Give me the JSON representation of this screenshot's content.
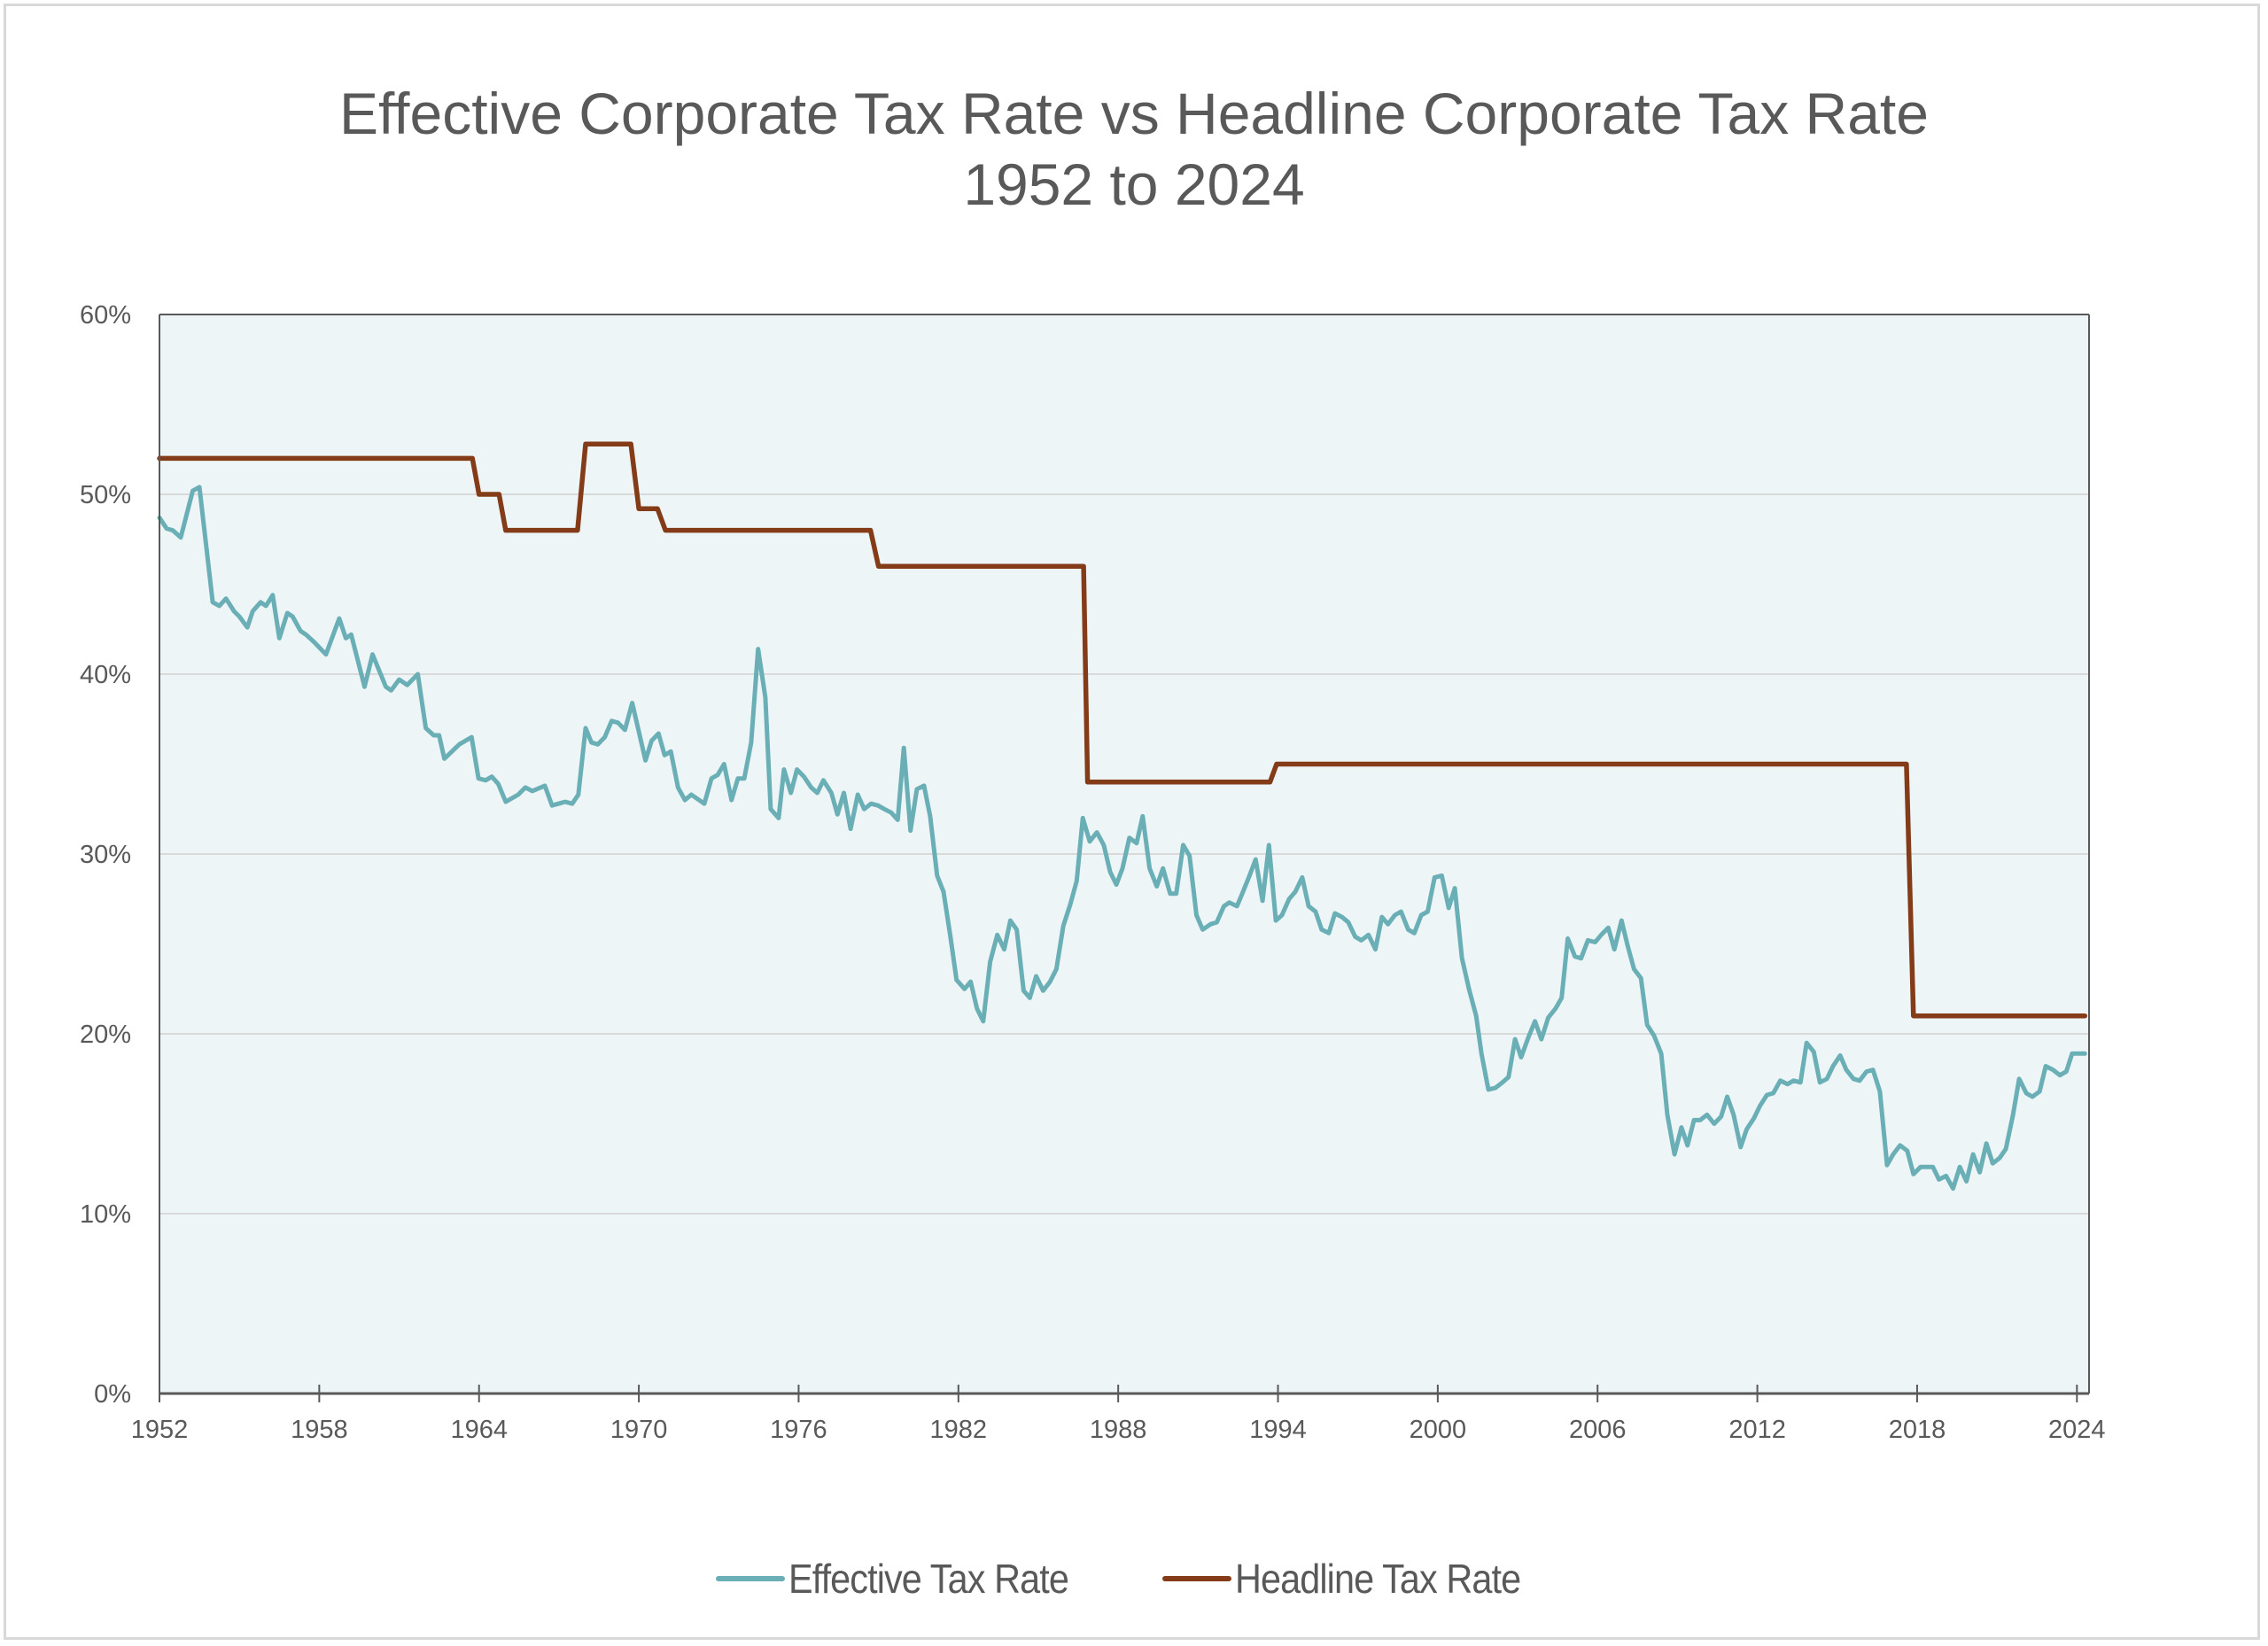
{
  "chart_data": {
    "type": "line",
    "title": "Effective Corporate Tax Rate vs Headline Corporate Tax Rate",
    "subtitle": "1952 to 2024",
    "xlabel": "",
    "ylabel": "",
    "xlim": [
      1952,
      2024.3
    ],
    "ylim": [
      0,
      60
    ],
    "x_ticks": [
      1952,
      1958,
      1964,
      1970,
      1976,
      1982,
      1988,
      1994,
      2000,
      2006,
      2012,
      2018,
      2024
    ],
    "y_ticks": [
      0,
      10,
      20,
      30,
      40,
      50,
      60
    ],
    "y_tick_labels": [
      "0%",
      "10%",
      "20%",
      "30%",
      "40%",
      "50%",
      "60%"
    ],
    "grid": "horizontal",
    "legend_position": "bottom",
    "plot_background": "#edf5f7",
    "series": [
      {
        "name": "Effective Tax Rate",
        "color": "#6aafb5",
        "points": [
          [
            1952.0,
            48.7
          ],
          [
            1952.27,
            48.1
          ],
          [
            1952.5,
            48.0
          ],
          [
            1952.8,
            47.6
          ],
          [
            1953.25,
            50.2
          ],
          [
            1953.5,
            50.4
          ],
          [
            1954.0,
            44.0
          ],
          [
            1954.25,
            43.8
          ],
          [
            1954.5,
            44.2
          ],
          [
            1954.8,
            43.5
          ],
          [
            1955.0,
            43.2
          ],
          [
            1955.3,
            42.6
          ],
          [
            1955.5,
            43.5
          ],
          [
            1955.8,
            44.0
          ],
          [
            1956.0,
            43.8
          ],
          [
            1956.25,
            44.4
          ],
          [
            1956.5,
            42.0
          ],
          [
            1956.8,
            43.4
          ],
          [
            1957.0,
            43.2
          ],
          [
            1957.3,
            42.4
          ],
          [
            1957.5,
            42.2
          ],
          [
            1957.8,
            41.8
          ],
          [
            1958.25,
            41.1
          ],
          [
            1958.75,
            43.1
          ],
          [
            1959.0,
            42.0
          ],
          [
            1959.2,
            42.2
          ],
          [
            1959.7,
            39.3
          ],
          [
            1960.0,
            41.1
          ],
          [
            1960.5,
            39.3
          ],
          [
            1960.7,
            39.1
          ],
          [
            1961.0,
            39.7
          ],
          [
            1961.3,
            39.4
          ],
          [
            1961.7,
            40.0
          ],
          [
            1962.0,
            37.0
          ],
          [
            1962.3,
            36.6
          ],
          [
            1962.5,
            36.6
          ],
          [
            1962.7,
            35.3
          ],
          [
            1963.26,
            36.1
          ],
          [
            1963.72,
            36.5
          ],
          [
            1963.98,
            34.2
          ],
          [
            1964.25,
            34.1
          ],
          [
            1964.48,
            34.3
          ],
          [
            1964.72,
            33.9
          ],
          [
            1965.0,
            32.9
          ],
          [
            1965.47,
            33.3
          ],
          [
            1965.74,
            33.7
          ],
          [
            1966.0,
            33.5
          ],
          [
            1966.47,
            33.8
          ],
          [
            1966.74,
            32.7
          ],
          [
            1967.23,
            32.9
          ],
          [
            1967.5,
            32.8
          ],
          [
            1967.73,
            33.3
          ],
          [
            1968.0,
            37.0
          ],
          [
            1968.22,
            36.2
          ],
          [
            1968.46,
            36.1
          ],
          [
            1968.72,
            36.5
          ],
          [
            1968.98,
            37.4
          ],
          [
            1969.22,
            37.3
          ],
          [
            1969.48,
            36.9
          ],
          [
            1969.75,
            38.4
          ],
          [
            1970.25,
            35.2
          ],
          [
            1970.48,
            36.3
          ],
          [
            1970.74,
            36.7
          ],
          [
            1970.97,
            35.5
          ],
          [
            1971.2,
            35.7
          ],
          [
            1971.47,
            33.7
          ],
          [
            1971.73,
            33.0
          ],
          [
            1971.97,
            33.3
          ],
          [
            1972.46,
            32.8
          ],
          [
            1972.73,
            34.2
          ],
          [
            1972.96,
            34.4
          ],
          [
            1973.2,
            35.0
          ],
          [
            1973.48,
            33.0
          ],
          [
            1973.72,
            34.2
          ],
          [
            1973.96,
            34.2
          ],
          [
            1974.22,
            36.2
          ],
          [
            1974.48,
            41.4
          ],
          [
            1974.75,
            38.7
          ],
          [
            1974.95,
            32.5
          ],
          [
            1975.25,
            32.0
          ],
          [
            1975.45,
            34.7
          ],
          [
            1975.71,
            33.4
          ],
          [
            1975.94,
            34.7
          ],
          [
            1976.2,
            34.3
          ],
          [
            1976.47,
            33.7
          ],
          [
            1976.7,
            33.4
          ],
          [
            1976.93,
            34.1
          ],
          [
            1977.23,
            33.4
          ],
          [
            1977.46,
            32.2
          ],
          [
            1977.7,
            33.4
          ],
          [
            1977.95,
            31.4
          ],
          [
            1978.22,
            33.3
          ],
          [
            1978.46,
            32.5
          ],
          [
            1978.72,
            32.8
          ],
          [
            1978.98,
            32.7
          ],
          [
            1979.22,
            32.5
          ],
          [
            1979.48,
            32.3
          ],
          [
            1979.72,
            31.9
          ],
          [
            1979.95,
            35.9
          ],
          [
            1980.2,
            31.3
          ],
          [
            1980.44,
            33.6
          ],
          [
            1980.71,
            33.8
          ],
          [
            1980.94,
            32.1
          ],
          [
            1981.2,
            28.8
          ],
          [
            1981.44,
            27.9
          ],
          [
            1981.7,
            25.4
          ],
          [
            1981.93,
            23.0
          ],
          [
            1982.23,
            22.5
          ],
          [
            1982.46,
            22.9
          ],
          [
            1982.7,
            21.4
          ],
          [
            1982.93,
            20.7
          ],
          [
            1983.19,
            24.0
          ],
          [
            1983.46,
            25.5
          ],
          [
            1983.72,
            24.7
          ],
          [
            1983.95,
            26.3
          ],
          [
            1984.19,
            25.8
          ],
          [
            1984.45,
            22.4
          ],
          [
            1984.68,
            22.0
          ],
          [
            1984.92,
            23.2
          ],
          [
            1985.18,
            22.4
          ],
          [
            1985.44,
            22.9
          ],
          [
            1985.68,
            23.6
          ],
          [
            1985.94,
            26.0
          ],
          [
            1986.2,
            27.2
          ],
          [
            1986.44,
            28.5
          ],
          [
            1986.67,
            32.0
          ],
          [
            1986.93,
            30.7
          ],
          [
            1987.2,
            31.2
          ],
          [
            1987.46,
            30.5
          ],
          [
            1987.7,
            29.0
          ],
          [
            1987.93,
            28.3
          ],
          [
            1988.16,
            29.2
          ],
          [
            1988.42,
            30.9
          ],
          [
            1988.69,
            30.6
          ],
          [
            1988.92,
            32.1
          ],
          [
            1989.18,
            29.2
          ],
          [
            1989.45,
            28.2
          ],
          [
            1989.68,
            29.2
          ],
          [
            1989.95,
            27.8
          ],
          [
            1990.18,
            27.8
          ],
          [
            1990.44,
            30.5
          ],
          [
            1990.68,
            29.9
          ],
          [
            1990.94,
            26.6
          ],
          [
            1991.17,
            25.8
          ],
          [
            1991.47,
            26.1
          ],
          [
            1991.7,
            26.2
          ],
          [
            1991.97,
            27.1
          ],
          [
            1992.17,
            27.3
          ],
          [
            1992.46,
            27.1
          ],
          [
            1992.66,
            27.8
          ],
          [
            1992.93,
            28.8
          ],
          [
            1993.16,
            29.7
          ],
          [
            1993.42,
            27.4
          ],
          [
            1993.66,
            30.5
          ],
          [
            1993.92,
            26.3
          ],
          [
            1994.15,
            26.6
          ],
          [
            1994.42,
            27.5
          ],
          [
            1994.65,
            27.9
          ],
          [
            1994.91,
            28.7
          ],
          [
            1995.15,
            27.1
          ],
          [
            1995.41,
            26.8
          ],
          [
            1995.64,
            25.8
          ],
          [
            1995.91,
            25.6
          ],
          [
            1996.14,
            26.7
          ],
          [
            1996.4,
            26.5
          ],
          [
            1996.64,
            26.2
          ],
          [
            1996.9,
            25.4
          ],
          [
            1997.13,
            25.2
          ],
          [
            1997.4,
            25.5
          ],
          [
            1997.66,
            24.7
          ],
          [
            1997.9,
            26.5
          ],
          [
            1998.13,
            26.1
          ],
          [
            1998.39,
            26.6
          ],
          [
            1998.62,
            26.8
          ],
          [
            1998.89,
            25.8
          ],
          [
            1999.12,
            25.6
          ],
          [
            1999.38,
            26.6
          ],
          [
            1999.62,
            26.8
          ],
          [
            1999.88,
            28.7
          ],
          [
            2000.15,
            28.8
          ],
          [
            2000.41,
            27.0
          ],
          [
            2000.64,
            28.1
          ],
          [
            2000.91,
            24.2
          ],
          [
            2001.17,
            22.5
          ],
          [
            2001.44,
            21.0
          ],
          [
            2001.64,
            18.9
          ],
          [
            2001.9,
            16.9
          ],
          [
            2002.17,
            17.0
          ],
          [
            2002.43,
            17.3
          ],
          [
            2002.66,
            17.6
          ],
          [
            2002.9,
            19.7
          ],
          [
            2003.13,
            18.7
          ],
          [
            2003.4,
            19.8
          ],
          [
            2003.65,
            20.7
          ],
          [
            2003.89,
            19.7
          ],
          [
            2004.15,
            20.9
          ],
          [
            2004.42,
            21.4
          ],
          [
            2004.65,
            22.0
          ],
          [
            2004.88,
            25.3
          ],
          [
            2005.15,
            24.3
          ],
          [
            2005.38,
            24.2
          ],
          [
            2005.64,
            25.2
          ],
          [
            2005.91,
            25.1
          ],
          [
            2006.14,
            25.5
          ],
          [
            2006.4,
            25.9
          ],
          [
            2006.63,
            24.7
          ],
          [
            2006.9,
            26.3
          ],
          [
            2007.13,
            24.9
          ],
          [
            2007.37,
            23.6
          ],
          [
            2007.63,
            23.1
          ],
          [
            2007.86,
            20.5
          ],
          [
            2008.12,
            19.9
          ],
          [
            2008.39,
            18.9
          ],
          [
            2008.62,
            15.5
          ],
          [
            2008.89,
            13.3
          ],
          [
            2009.15,
            14.8
          ],
          [
            2009.38,
            13.8
          ],
          [
            2009.62,
            15.2
          ],
          [
            2009.85,
            15.2
          ],
          [
            2010.11,
            15.5
          ],
          [
            2010.38,
            15.0
          ],
          [
            2010.64,
            15.4
          ],
          [
            2010.87,
            16.5
          ],
          [
            2011.11,
            15.5
          ],
          [
            2011.37,
            13.7
          ],
          [
            2011.6,
            14.7
          ],
          [
            2011.87,
            15.3
          ],
          [
            2012.1,
            16.0
          ],
          [
            2012.36,
            16.6
          ],
          [
            2012.6,
            16.7
          ],
          [
            2012.86,
            17.4
          ],
          [
            2013.13,
            17.2
          ],
          [
            2013.36,
            17.4
          ],
          [
            2013.62,
            17.3
          ],
          [
            2013.85,
            19.5
          ],
          [
            2014.12,
            19.0
          ],
          [
            2014.35,
            17.3
          ],
          [
            2014.61,
            17.5
          ],
          [
            2014.84,
            18.2
          ],
          [
            2015.11,
            18.8
          ],
          [
            2015.34,
            18.0
          ],
          [
            2015.61,
            17.5
          ],
          [
            2015.84,
            17.4
          ],
          [
            2016.1,
            17.9
          ],
          [
            2016.34,
            18.0
          ],
          [
            2016.6,
            16.8
          ],
          [
            2016.87,
            12.7
          ],
          [
            2017.1,
            13.3
          ],
          [
            2017.36,
            13.8
          ],
          [
            2017.63,
            13.5
          ],
          [
            2017.86,
            12.2
          ],
          [
            2018.13,
            12.6
          ],
          [
            2018.36,
            12.6
          ],
          [
            2018.59,
            12.6
          ],
          [
            2018.82,
            11.9
          ],
          [
            2019.09,
            12.1
          ],
          [
            2019.35,
            11.4
          ],
          [
            2019.6,
            12.6
          ],
          [
            2019.85,
            11.8
          ],
          [
            2020.1,
            13.3
          ],
          [
            2020.35,
            12.3
          ],
          [
            2020.6,
            13.9
          ],
          [
            2020.84,
            12.8
          ],
          [
            2021.1,
            13.1
          ],
          [
            2021.33,
            13.6
          ],
          [
            2021.6,
            15.5
          ],
          [
            2021.83,
            17.5
          ],
          [
            2022.1,
            16.7
          ],
          [
            2022.33,
            16.5
          ],
          [
            2022.6,
            16.8
          ],
          [
            2022.83,
            18.2
          ],
          [
            2023.1,
            18.0
          ],
          [
            2023.36,
            17.7
          ],
          [
            2023.6,
            17.9
          ],
          [
            2023.82,
            18.9
          ],
          [
            2024.09,
            18.9
          ],
          [
            2024.3,
            18.9
          ]
        ]
      },
      {
        "name": "Headline Tax Rate",
        "color": "#843c18",
        "points": [
          [
            1952.0,
            52.0
          ],
          [
            1963.75,
            52.0
          ],
          [
            1964.0,
            50.0
          ],
          [
            1964.75,
            50.0
          ],
          [
            1965.0,
            48.0
          ],
          [
            1967.7,
            48.0
          ],
          [
            1968.0,
            52.8
          ],
          [
            1969.7,
            52.8
          ],
          [
            1970.0,
            49.2
          ],
          [
            1970.7,
            49.2
          ],
          [
            1971.0,
            48.0
          ],
          [
            1978.7,
            48.0
          ],
          [
            1979.0,
            46.0
          ],
          [
            1986.7,
            46.0
          ],
          [
            1986.85,
            34.0
          ],
          [
            1993.7,
            34.0
          ],
          [
            1993.95,
            35.0
          ],
          [
            2017.6,
            35.0
          ],
          [
            2017.86,
            21.0
          ],
          [
            2024.3,
            21.0
          ]
        ]
      }
    ]
  }
}
